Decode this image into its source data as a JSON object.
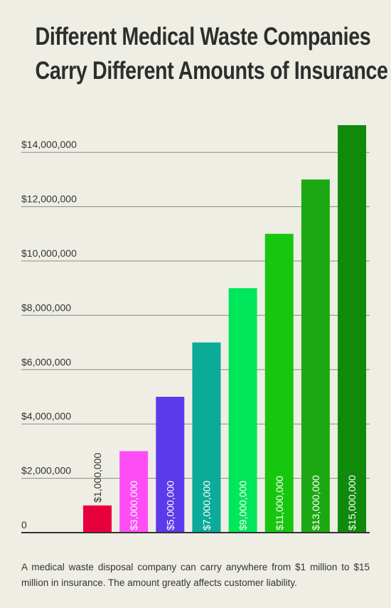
{
  "title": {
    "line1": "Different Medical Waste Companies",
    "line2": "Carry Different Amounts of Insurance"
  },
  "caption": "A medical waste disposal company can carry anywhere from $1 million to $15 million in insurance. The amount greatly affects customer liability.",
  "chart_data": {
    "type": "bar",
    "categories": [
      "",
      "",
      "",
      "",
      "",
      "",
      "",
      ""
    ],
    "values": [
      1000000,
      3000000,
      5000000,
      7000000,
      9000000,
      11000000,
      13000000,
      15000000
    ],
    "data_labels": [
      "$1,000,000",
      "$3,000,000",
      "$5,000,000",
      "$7,000,000",
      "$9,000,000",
      "$11,000,000",
      "$13,000,000",
      "$15,000,000"
    ],
    "bar_colors": [
      "#e8003d",
      "#ff4df5",
      "#5b3aea",
      "#0aab98",
      "#00e65a",
      "#17c70f",
      "#1ca812",
      "#0f8a0a"
    ],
    "yticks": [
      0,
      2000000,
      4000000,
      6000000,
      8000000,
      10000000,
      12000000,
      14000000
    ],
    "ytick_labels": [
      "0",
      "$2,000,000",
      "$4,000,000",
      "$6,000,000",
      "$8,000,000",
      "$10,000,000",
      "$12,000,000",
      "$14,000,000"
    ],
    "ylim": [
      0,
      15000000
    ],
    "grid": true,
    "legend": false,
    "xlabel": "",
    "ylabel": ""
  }
}
